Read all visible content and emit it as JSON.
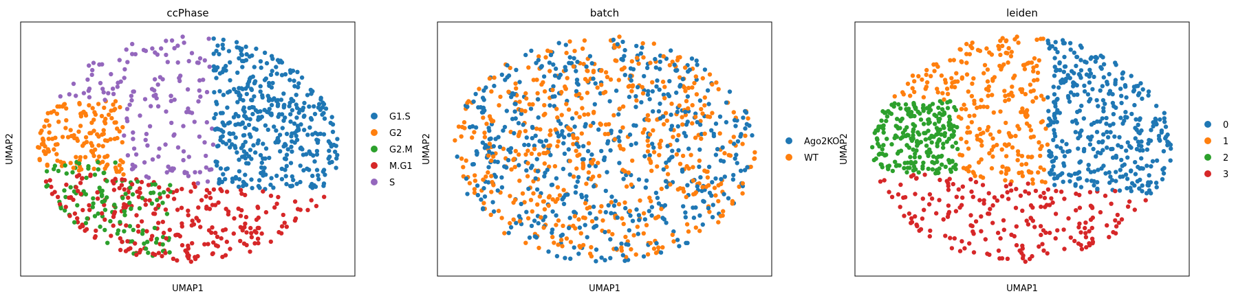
{
  "chart_data": [
    {
      "type": "scatter",
      "title": "ccPhase",
      "xlabel": "UMAP1",
      "ylabel": "UMAP2",
      "ticks": "none",
      "grid": false,
      "legend_position": "right",
      "series": [
        {
          "name": "G1.S",
          "color": "#1f77b4",
          "region": "right",
          "n_points": 420
        },
        {
          "name": "G2",
          "color": "#ff7f0e",
          "region": "left",
          "n_points": 150
        },
        {
          "name": "G2.M",
          "color": "#2ca02c",
          "region": "lower-left",
          "n_points": 120
        },
        {
          "name": "M.G1",
          "color": "#d62728",
          "region": "bottom",
          "n_points": 260
        },
        {
          "name": "S",
          "color": "#9467bd",
          "region": "upper-middle",
          "n_points": 150
        }
      ]
    },
    {
      "type": "scatter",
      "title": "batch",
      "xlabel": "UMAP1",
      "ylabel": "UMAP2",
      "ticks": "none",
      "grid": false,
      "legend_position": "right",
      "series": [
        {
          "name": "Ago2KO",
          "color": "#1f77b4",
          "region": "all",
          "n_points": 560
        },
        {
          "name": "WT",
          "color": "#ff7f0e",
          "region": "all",
          "n_points": 540
        }
      ]
    },
    {
      "type": "scatter",
      "title": "leiden",
      "xlabel": "UMAP1",
      "ylabel": "UMAP2",
      "ticks": "none",
      "grid": false,
      "legend_position": "right",
      "series": [
        {
          "name": "0",
          "color": "#1f77b4",
          "region": "right",
          "n_points": 380
        },
        {
          "name": "1",
          "color": "#ff7f0e",
          "region": "upper-middle",
          "n_points": 260
        },
        {
          "name": "2",
          "color": "#2ca02c",
          "region": "left",
          "n_points": 250
        },
        {
          "name": "3",
          "color": "#d62728",
          "region": "bottom",
          "n_points": 210
        }
      ]
    }
  ]
}
